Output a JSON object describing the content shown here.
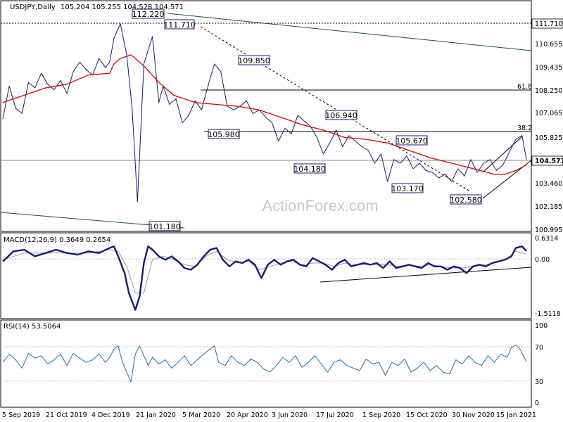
{
  "header": {
    "symbol": "USDJPY,Daily",
    "ohlc": "105.204 105.255 104.528 104.571"
  },
  "watermark": "ActionForex.com",
  "colors": {
    "price": "#1a1a6e",
    "ma": "#dd0000",
    "macd_line": "#1a1a7a",
    "macd_signal": "#999999",
    "rsi": "#1e6fb0",
    "trendline": "#000000"
  },
  "chart_data": [
    {
      "type": "line",
      "panel": "price",
      "title": "USDJPY,Daily",
      "x_ticks": [
        "5 Sep 2019",
        "21 Oct 2019",
        "4 Dec 2019",
        "21 Jan 2020",
        "5 Mar 2020",
        "20 Apr 2020",
        "3 Jun 2020",
        "17 Jul 2020",
        "1 Sep 2020",
        "15 Oct 2020",
        "30 Nov 2020",
        "15 Jan 2021"
      ],
      "y_ticks": [
        "111.710",
        "110.655",
        "109.435",
        "108.250",
        "107.065",
        "105.825",
        "104.571",
        "103.460",
        "102.185",
        "100.995"
      ],
      "ylim": [
        100.8,
        112.75
      ],
      "current": "104.571",
      "level_labels": [
        "112.220",
        "111.710",
        "109.850",
        "105.980",
        "104.180",
        "106.940",
        "105.670",
        "103.170",
        "102.580",
        "101.180"
      ],
      "fib_labels": [
        "61.8",
        "38.2"
      ],
      "series": [
        {
          "x": [
            0,
            6,
            12,
            18,
            24,
            30,
            36,
            42,
            48,
            54,
            60,
            66,
            72,
            78,
            84,
            90,
            96,
            100,
            104,
            110,
            116,
            121,
            126,
            132,
            140,
            146,
            150,
            156,
            162,
            168,
            174,
            180,
            186,
            192,
            198,
            204,
            210,
            216,
            222,
            228,
            234,
            240,
            246,
            252,
            258,
            264,
            270,
            276,
            282,
            288,
            294,
            300,
            306,
            312,
            318,
            324,
            330,
            336,
            342,
            348,
            354,
            360,
            366,
            372,
            378,
            384,
            390,
            396,
            402,
            408,
            414,
            420,
            426,
            432,
            438,
            444,
            450,
            456,
            462,
            468,
            474,
            480,
            486,
            490
          ],
          "values": [
            106.8,
            108.6,
            107.4,
            107.1,
            108.8,
            108.5,
            109.3,
            108.7,
            108.4,
            108.9,
            108.2,
            109.4,
            109.9,
            109.5,
            109.2,
            110.1,
            109.6,
            109.9,
            111.2,
            112.0,
            110.3,
            107.4,
            102.3,
            109.8,
            111.3,
            107.7,
            108.6,
            107.6,
            107.9,
            106.6,
            107.0,
            107.8,
            107.3,
            108.6,
            109.8,
            109.4,
            107.5,
            107.3,
            107.5,
            107.8,
            107.1,
            107.3,
            106.9,
            106.6,
            105.6,
            106.3,
            106.0,
            107.0,
            106.7,
            106.4,
            105.8,
            104.9,
            105.5,
            106.2,
            105.3,
            105.9,
            105.6,
            105.3,
            105.1,
            104.4,
            104.9,
            103.4,
            104.6,
            104.4,
            104.8,
            104.1,
            104.4,
            104.0,
            103.9,
            103.6,
            103.8,
            103.4,
            104.1,
            103.7,
            104.6,
            103.9,
            104.4,
            104.6,
            104.0,
            104.3,
            105.0,
            105.7,
            105.9,
            104.6
          ]
        },
        {
          "x": [
            0,
            20,
            40,
            60,
            80,
            100,
            104,
            110,
            120,
            126,
            132,
            146,
            160,
            180,
            200,
            220,
            240,
            260,
            280,
            300,
            320,
            340,
            360,
            380,
            400,
            420,
            440,
            460,
            470,
            480,
            490
          ],
          "values": [
            107.7,
            108.1,
            108.5,
            108.7,
            109.2,
            109.3,
            109.8,
            110.1,
            110.3,
            110.0,
            109.7,
            108.8,
            108.1,
            107.7,
            107.6,
            107.5,
            107.3,
            106.9,
            106.5,
            106.2,
            105.8,
            105.7,
            105.5,
            105.1,
            104.7,
            104.4,
            104.1,
            103.8,
            103.8,
            104.0,
            104.3
          ]
        }
      ]
    },
    {
      "type": "line",
      "panel": "macd",
      "title": "MACD(12,26,9) 0.3649 0.2654",
      "y_ticks": [
        "0.6314",
        "0.00",
        "-1.5118"
      ],
      "ylim": [
        -1.6,
        0.8
      ],
      "series": [
        {
          "x": [
            0,
            10,
            20,
            30,
            40,
            50,
            60,
            70,
            80,
            90,
            100,
            104,
            108,
            114,
            118,
            124,
            128,
            132,
            136,
            140,
            146,
            152,
            158,
            164,
            170,
            176,
            182,
            188,
            194,
            200,
            206,
            212,
            218,
            224,
            230,
            236,
            242,
            248,
            254,
            260,
            266,
            272,
            278,
            284,
            290,
            296,
            302,
            308,
            314,
            320,
            326,
            332,
            338,
            344,
            350,
            356,
            362,
            368,
            374,
            380,
            386,
            392,
            398,
            404,
            410,
            416,
            422,
            428,
            434,
            440,
            446,
            452,
            458,
            464,
            470,
            476,
            480,
            486,
            490
          ],
          "values": [
            0.05,
            0.35,
            0.4,
            0.2,
            0.3,
            0.4,
            0.3,
            0.25,
            0.35,
            0.3,
            0.45,
            0.5,
            0.2,
            -0.3,
            -0.9,
            -1.4,
            -1.0,
            0.0,
            0.5,
            0.4,
            0.2,
            0.1,
            0.2,
            0.05,
            -0.15,
            -0.2,
            -0.05,
            0.2,
            0.4,
            0.45,
            0.1,
            -0.1,
            0.05,
            0.0,
            0.1,
            -0.05,
            -0.45,
            -0.05,
            0.1,
            -0.05,
            0.05,
            0.1,
            -0.05,
            -0.1,
            0.15,
            0.05,
            -0.05,
            -0.2,
            0.0,
            0.1,
            -0.1,
            -0.05,
            0.0,
            -0.05,
            0.0,
            -0.15,
            0.05,
            -0.15,
            -0.1,
            -0.05,
            -0.1,
            -0.15,
            0.0,
            -0.1,
            -0.1,
            -0.2,
            -0.1,
            -0.15,
            -0.3,
            -0.1,
            -0.05,
            -0.1,
            0.0,
            0.05,
            0.1,
            0.2,
            0.45,
            0.5,
            0.36
          ]
        },
        {
          "x": [
            0,
            20,
            40,
            60,
            80,
            100,
            108,
            116,
            124,
            132,
            140,
            150,
            160,
            170,
            180,
            190,
            200,
            210,
            220,
            230,
            240,
            250,
            260,
            270,
            280,
            290,
            300,
            310,
            320,
            330,
            340,
            350,
            360,
            370,
            380,
            390,
            400,
            410,
            420,
            430,
            440,
            450,
            460,
            470,
            480,
            490
          ],
          "values": [
            0.1,
            0.3,
            0.3,
            0.3,
            0.3,
            0.4,
            0.35,
            -0.1,
            -0.9,
            -0.9,
            0.1,
            0.2,
            0.1,
            -0.05,
            -0.1,
            0.2,
            0.35,
            0.1,
            0.0,
            0.05,
            -0.2,
            -0.1,
            0.0,
            0.05,
            -0.05,
            0.0,
            0.0,
            -0.1,
            0.0,
            -0.05,
            -0.05,
            -0.05,
            -0.05,
            -0.1,
            -0.05,
            -0.1,
            -0.05,
            -0.1,
            -0.15,
            -0.15,
            -0.1,
            -0.05,
            0.0,
            0.1,
            0.35,
            0.27
          ]
        }
      ]
    },
    {
      "type": "line",
      "panel": "rsi",
      "title": "RSI(14) 53.5064",
      "y_ticks": [
        "100",
        "70",
        "30",
        "0"
      ],
      "ylim": [
        0,
        100
      ],
      "series": [
        {
          "x": [
            0,
            6,
            12,
            18,
            24,
            30,
            36,
            42,
            48,
            54,
            60,
            66,
            72,
            78,
            84,
            90,
            96,
            100,
            104,
            108,
            112,
            116,
            120,
            124,
            128,
            132,
            136,
            140,
            146,
            152,
            158,
            164,
            170,
            176,
            182,
            188,
            194,
            198,
            202,
            208,
            214,
            220,
            226,
            232,
            238,
            244,
            250,
            256,
            262,
            268,
            274,
            280,
            286,
            292,
            298,
            304,
            310,
            316,
            322,
            328,
            334,
            340,
            346,
            352,
            358,
            364,
            370,
            376,
            382,
            388,
            394,
            400,
            406,
            412,
            418,
            424,
            430,
            436,
            442,
            448,
            454,
            460,
            466,
            472,
            476,
            480,
            484,
            490
          ],
          "values": [
            52,
            62,
            55,
            45,
            63,
            57,
            60,
            50,
            55,
            62,
            48,
            63,
            57,
            52,
            55,
            62,
            52,
            58,
            68,
            72,
            52,
            40,
            28,
            62,
            72,
            60,
            48,
            58,
            50,
            55,
            45,
            52,
            60,
            48,
            55,
            62,
            68,
            72,
            52,
            48,
            60,
            52,
            48,
            56,
            52,
            44,
            40,
            48,
            58,
            52,
            60,
            46,
            52,
            60,
            50,
            40,
            52,
            55,
            48,
            45,
            42,
            56,
            50,
            52,
            36,
            52,
            48,
            56,
            40,
            45,
            52,
            42,
            48,
            40,
            38,
            55,
            50,
            60,
            52,
            48,
            60,
            52,
            62,
            58,
            70,
            73,
            68,
            53
          ]
        }
      ]
    }
  ]
}
